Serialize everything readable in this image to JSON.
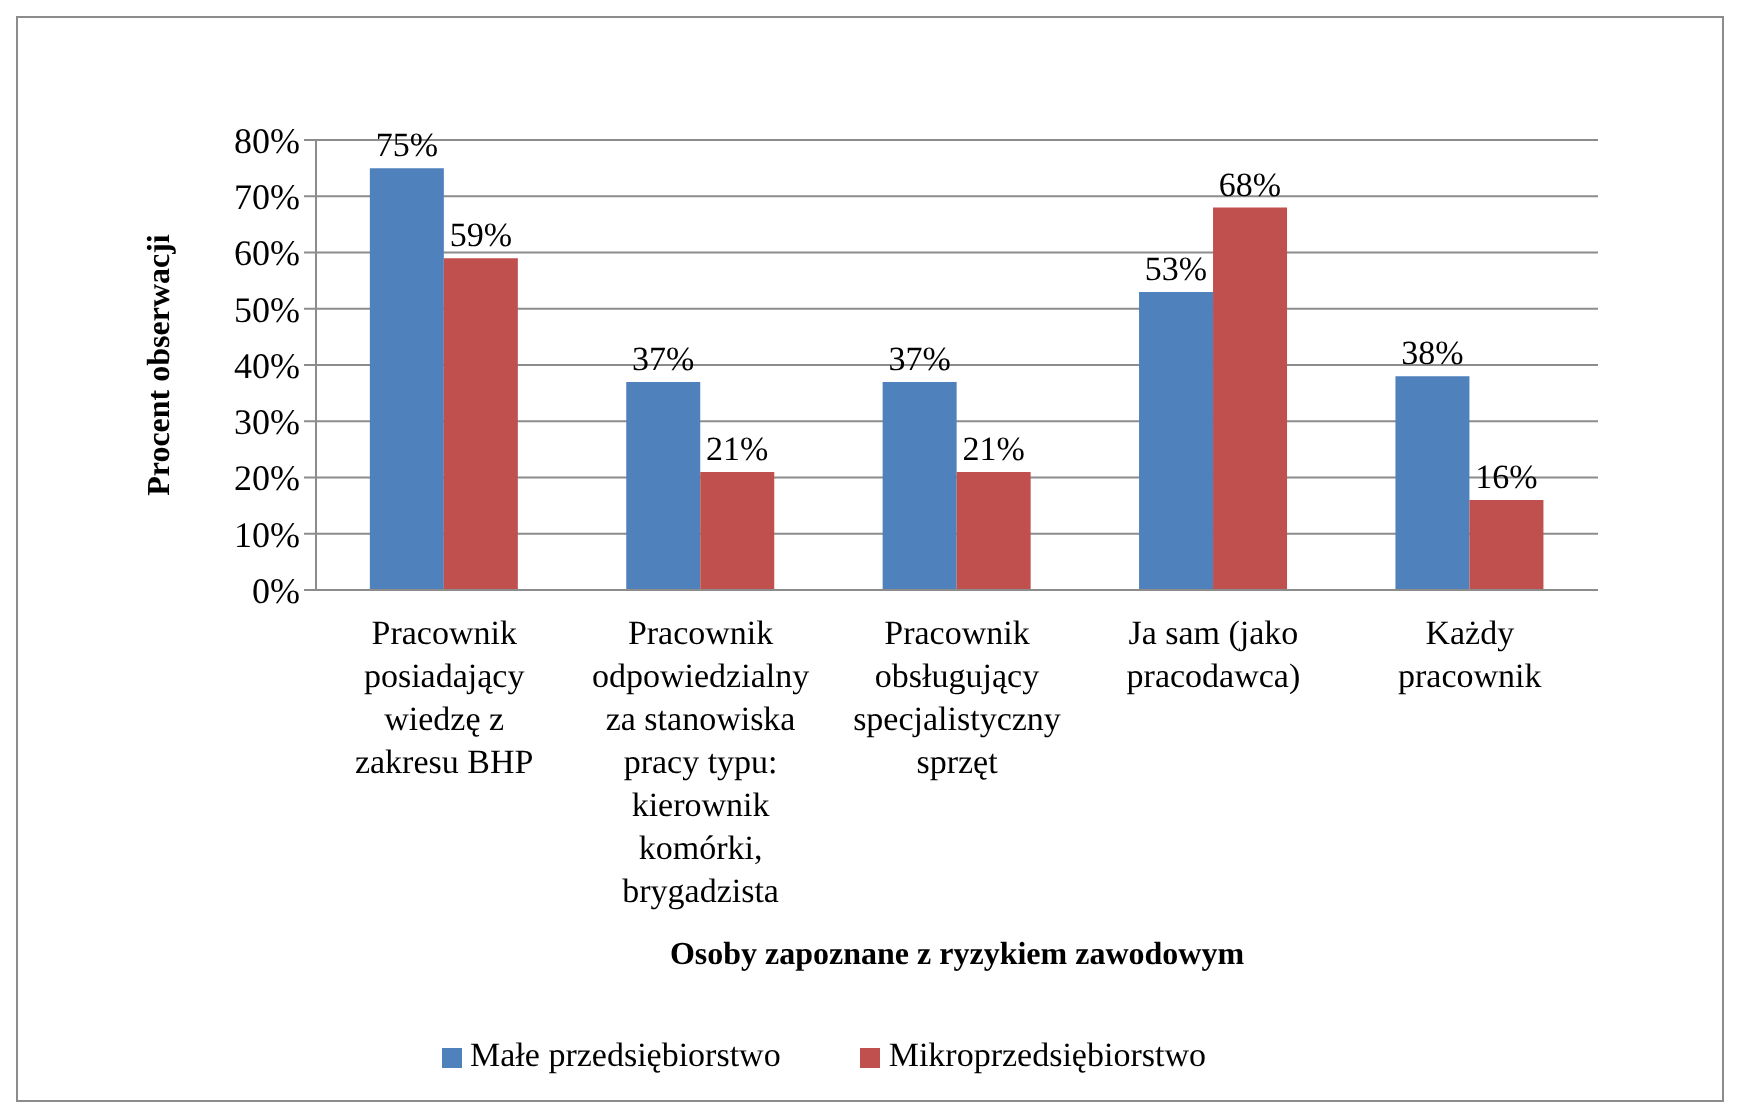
{
  "chart_data": {
    "type": "bar",
    "categories": [
      "Pracownik posiadający wiedzę z zakresu BHP",
      "Pracownik odpowiedzialny za stanowiska pracy typu: kierownik komórki, brygadzista",
      "Pracownik obsługujący specjalistyczny sprzęt",
      "Ja sam (jako pracodawca)",
      "Każdy pracownik"
    ],
    "series": [
      {
        "name": "Małe przedsiębiorstwo",
        "color": "#4f81bd",
        "values": [
          75,
          37,
          37,
          53,
          38
        ],
        "value_labels": [
          "75%",
          "37%",
          "37%",
          "53%",
          "38%"
        ]
      },
      {
        "name": "Mikroprzedsiębiorstwo",
        "color": "#c0504d",
        "values": [
          59,
          21,
          21,
          68,
          16
        ],
        "value_labels": [
          "59%",
          "21%",
          "21%",
          "68%",
          "16%"
        ]
      }
    ],
    "xlabel": "Osoby zapoznane z ryzykiem zawodowym",
    "ylabel": "Procent obserwacji",
    "ylim": [
      0,
      80
    ],
    "yticks": [
      {
        "value": 0,
        "label": "0%"
      },
      {
        "value": 10,
        "label": "10%"
      },
      {
        "value": 20,
        "label": "20%"
      },
      {
        "value": 30,
        "label": "30%"
      },
      {
        "value": 40,
        "label": "40%"
      },
      {
        "value": 50,
        "label": "50%"
      },
      {
        "value": 60,
        "label": "60%"
      },
      {
        "value": 70,
        "label": "70%"
      },
      {
        "value": 80,
        "label": "80%"
      }
    ],
    "grid": "y",
    "legend": "bottom"
  }
}
